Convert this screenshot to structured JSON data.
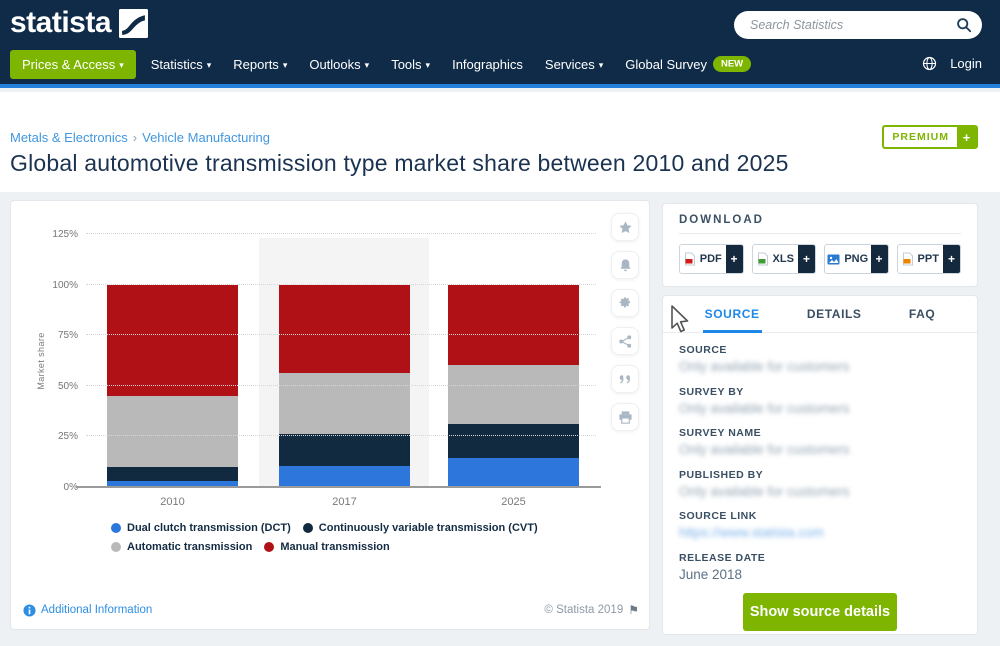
{
  "navbar": {
    "logo_text": "statista",
    "search": {
      "placeholder": "Search Statistics"
    },
    "menu": [
      {
        "label": "Prices & Access"
      },
      {
        "label": "Statistics"
      },
      {
        "label": "Reports"
      },
      {
        "label": "Outlooks"
      },
      {
        "label": "Tools"
      },
      {
        "label": "Infographics"
      },
      {
        "label": "Services"
      },
      {
        "label": "Global Survey",
        "badge": "NEW"
      }
    ],
    "login_label": "Login"
  },
  "breadcrumb": {
    "category": "Metals & Electronics",
    "separator": "›",
    "subcategory": "Vehicle Manufacturing"
  },
  "premium_badge": {
    "label": "PREMIUM",
    "plus": "+"
  },
  "page_title": "Global automotive transmission type market share between 2010 and 2025",
  "chart_card": {
    "footer_left": "Additional Information",
    "footer_right": "© Statista 2019",
    "toolbar_icons": [
      "favorite-star",
      "alert-bell",
      "settings-gear",
      "share",
      "cite-quote",
      "print"
    ]
  },
  "chart_data": {
    "type": "bar",
    "stacked": true,
    "categories": [
      "2010",
      "2017",
      "2025"
    ],
    "series": [
      {
        "name": "Dual clutch transmission (DCT)",
        "color": "#2d77dc",
        "values": [
          3,
          10.5,
          14.5
        ]
      },
      {
        "name": "Continuously variable transmission (CVT)",
        "color": "#122a3f",
        "values": [
          7,
          15.5,
          16.5
        ]
      },
      {
        "name": "Automatic transmission",
        "color": "#b9b9b9",
        "values": [
          35,
          30.5,
          29.5
        ]
      },
      {
        "name": "Manual transmission",
        "color": "#b01116",
        "values": [
          55,
          43.5,
          39.5
        ]
      }
    ],
    "title": "Global automotive transmission type market share between 2010 and 2025",
    "xlabel": "",
    "ylabel": "Market share",
    "unit": "%",
    "ylim": [
      0,
      125
    ],
    "yticks": [
      "0%",
      "25%",
      "50%",
      "75%",
      "100%",
      "125%"
    ],
    "grid": "dotted-horizontal",
    "legend_position": "bottom",
    "highlighted_category": "2017"
  },
  "download_panel": {
    "title": "DOWNLOAD",
    "plus": "+",
    "buttons": [
      {
        "label": "PDF"
      },
      {
        "label": "XLS"
      },
      {
        "label": "PNG"
      },
      {
        "label": "PPT"
      }
    ]
  },
  "source_panel": {
    "active_tab": "SOURCE",
    "tabs": [
      {
        "label": "SOURCE"
      },
      {
        "label": "DETAILS"
      },
      {
        "label": "FAQ"
      }
    ],
    "fields": [
      {
        "label": "SOURCE",
        "value": "Only available for customers",
        "blurred": true
      },
      {
        "label": "SURVEY BY",
        "value": "Only available for customers",
        "blurred": true
      },
      {
        "label": "SURVEY NAME",
        "value": "Only available for customers",
        "blurred": true
      },
      {
        "label": "PUBLISHED BY",
        "value": "Only available for customers",
        "blurred": true
      },
      {
        "label": "SOURCE LINK",
        "value": "https://www.statista.com",
        "blurred": true
      },
      {
        "label": "RELEASE DATE",
        "value": "June 2018",
        "blurred": false
      }
    ],
    "button_label": "Show source details"
  },
  "colors": {
    "navbar_bg": "#0f2b48",
    "accent_blue": "#1e88e8",
    "brand_green": "#7db500",
    "bar_blue": "#2d77dc",
    "bar_navy": "#122a3f",
    "bar_gray": "#b9b9b9",
    "bar_red": "#b01116"
  }
}
